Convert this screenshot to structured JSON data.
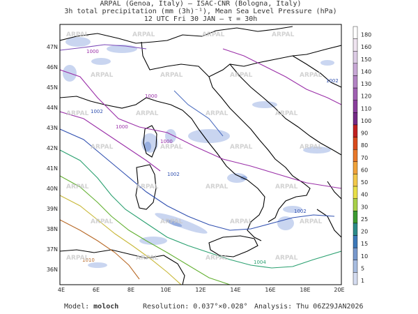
{
  "title": {
    "line1": "ARPAL (Genoa, Italy)  —  ISAC-CNR (Bologna, Italy)",
    "line2": "3h total precipitation (mm (3h)⁻¹), Mean Sea Level Pressure (hPa)",
    "line3": "12 UTC Fri 30 JAN  —  τ = 30h"
  },
  "watermark": "ARPAL",
  "lat_labels": [
    "47N",
    "46N",
    "45N",
    "44N",
    "43N",
    "42N",
    "41N",
    "40N",
    "39N",
    "38N",
    "37N",
    "36N"
  ],
  "lon_labels": [
    "4E",
    "6E",
    "8E",
    "10E",
    "12E",
    "14E",
    "16E",
    "18E",
    "20E"
  ],
  "isobar_labels": [
    "1000",
    "1000",
    "1002",
    "1002",
    "1000",
    "1000",
    "1002",
    "1002",
    "1004",
    "1010"
  ],
  "colorbar": {
    "labels": [
      "180",
      "160",
      "150",
      "140",
      "130",
      "120",
      "110",
      "100",
      "90",
      "80",
      "70",
      "60",
      "50",
      "40",
      "30",
      "25",
      "20",
      "15",
      "10",
      "5",
      "1"
    ],
    "colors": [
      "#ffffff",
      "#efe4f0",
      "#dccbe4",
      "#c8a8d6",
      "#b383c4",
      "#a060b2",
      "#8a3e9c",
      "#742a86",
      "#c02020",
      "#d84a1c",
      "#e8782a",
      "#f0a23a",
      "#f2c84a",
      "#e8e048",
      "#a8d048",
      "#3c9a30",
      "#2c8a88",
      "#3c78b8",
      "#7898cc",
      "#a8bce0",
      "#d4dcf0"
    ]
  },
  "footer": {
    "model_label": "Model:",
    "model_value": "moloch",
    "resolution_label": "Resolution:",
    "resolution_value": "0.037°×0.028°",
    "analysis_label": "Analysis:",
    "analysis_value": "Thu 06Z29JAN2026"
  }
}
